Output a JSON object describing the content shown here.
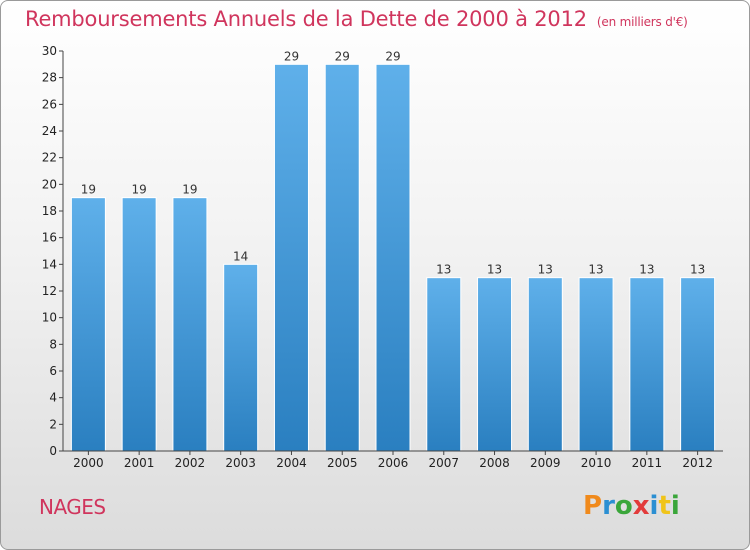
{
  "header": {
    "title": "Remboursements Annuels de la Dette de 2000 à 2012",
    "unit": "(en milliers d'€)"
  },
  "footer": {
    "commune": "NAGES",
    "logo": [
      "P",
      "r",
      "o",
      "x",
      "i",
      "t",
      "i"
    ]
  },
  "colors": {
    "title": "#d0355d",
    "bar_light": "#5fb0ea",
    "bar_dark": "#2a7fc0"
  },
  "chart_data": {
    "type": "bar",
    "title": "Remboursements Annuels de la Dette de 2000 à 2012",
    "categories": [
      "2000",
      "2001",
      "2002",
      "2003",
      "2004",
      "2005",
      "2006",
      "2007",
      "2008",
      "2009",
      "2010",
      "2011",
      "2012"
    ],
    "values": [
      19,
      19,
      19,
      14,
      29,
      29,
      29,
      13,
      13,
      13,
      13,
      13,
      13
    ],
    "ylim": [
      0,
      30
    ],
    "yticks": [
      0,
      2,
      4,
      6,
      8,
      10,
      12,
      14,
      16,
      18,
      20,
      22,
      24,
      26,
      28,
      30
    ],
    "grid": false,
    "legend": "none"
  }
}
